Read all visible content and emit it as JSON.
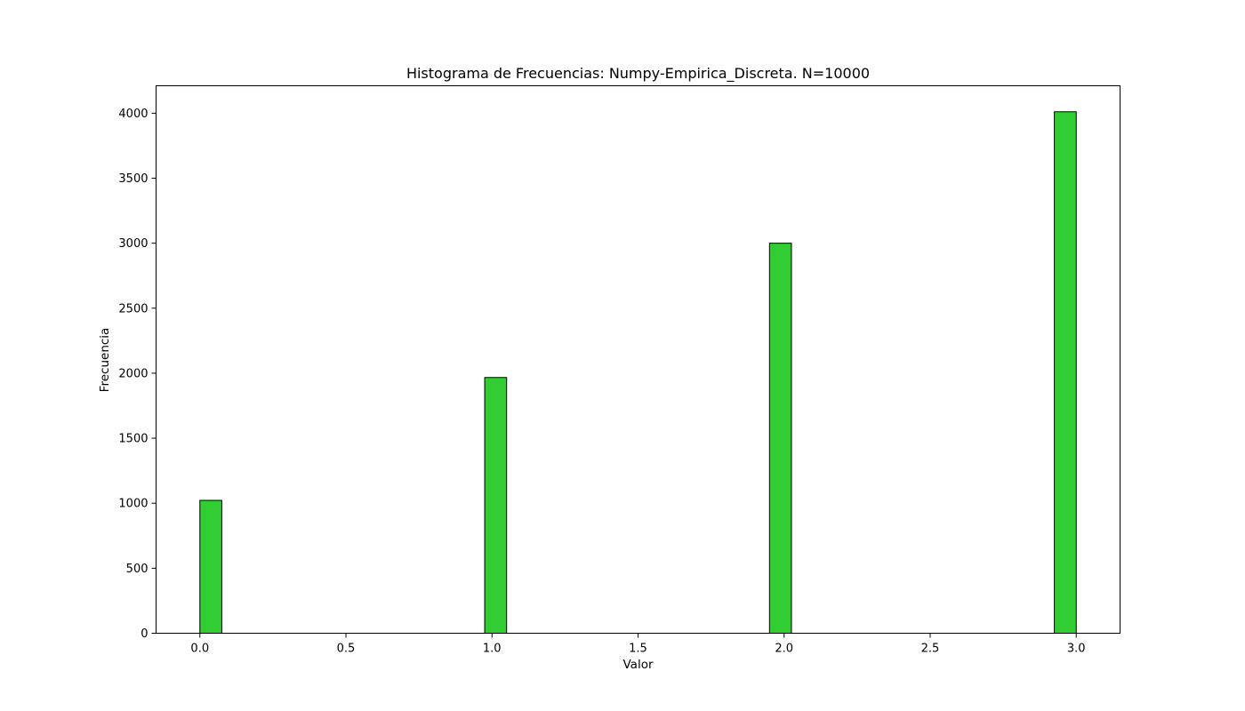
{
  "chart_data": {
    "type": "bar",
    "title": "Histograma de Frecuencias: Numpy-Empirica_Discreta. N=10000",
    "xlabel": "Valor",
    "ylabel": "Frecuencia",
    "bar_color": "#32cd32",
    "edge_color": "#000000",
    "bin_width": 0.075,
    "bins": [
      {
        "left": 0.0,
        "value": 1022
      },
      {
        "left": 0.975,
        "value": 1967
      },
      {
        "left": 1.95,
        "value": 3000
      },
      {
        "left": 2.925,
        "value": 4011
      }
    ],
    "xlim": [
      -0.15,
      3.15
    ],
    "ylim": [
      0,
      4211
    ],
    "xticks": [
      0.0,
      0.5,
      1.0,
      1.5,
      2.0,
      2.5,
      3.0
    ],
    "xtick_labels": [
      "0.0",
      "0.5",
      "1.0",
      "1.5",
      "2.0",
      "2.5",
      "3.0"
    ],
    "yticks": [
      0,
      500,
      1000,
      1500,
      2000,
      2500,
      3000,
      3500,
      4000
    ],
    "ytick_labels": [
      "0",
      "500",
      "1000",
      "1500",
      "2000",
      "2500",
      "3000",
      "3500",
      "4000"
    ],
    "grid": false,
    "legend": false
  }
}
